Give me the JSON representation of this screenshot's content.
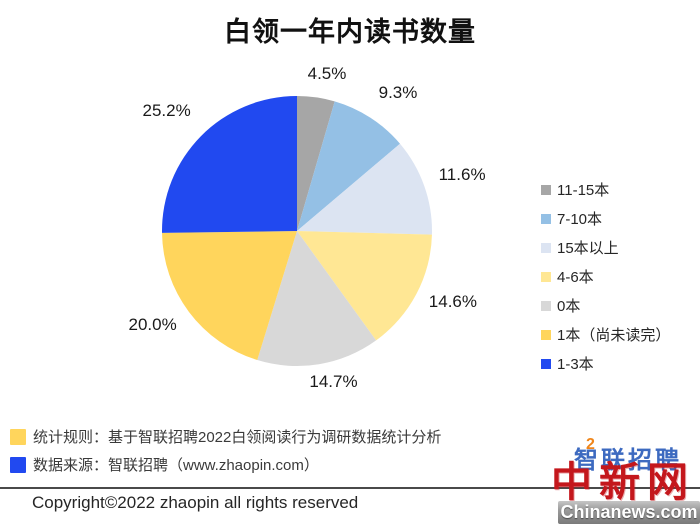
{
  "title": "白领一年内读书数量",
  "chart_data": {
    "type": "pie",
    "title": "白领一年内读书数量",
    "start_angle_deg": 0,
    "direction": "clockwise",
    "legend_position": "right",
    "series": [
      {
        "label": "11-15本",
        "value": 4.5,
        "color": "#A6A6A6"
      },
      {
        "label": "7-10本",
        "value": 9.3,
        "color": "#94C0E5"
      },
      {
        "label": "15本以上",
        "value": 11.6,
        "color": "#DCE4F2"
      },
      {
        "label": "4-6本",
        "value": 14.6,
        "color": "#FFE794"
      },
      {
        "label": "0本",
        "value": 14.7,
        "color": "#D8D8D8"
      },
      {
        "label": "1本（尚未读完）",
        "value": 20.0,
        "color": "#FFD55C"
      },
      {
        "label": "1-3本",
        "value": 25.2,
        "color": "#2149F0"
      }
    ],
    "value_labels": [
      "4.5%",
      "9.3%",
      "11.6%",
      "14.6%",
      "14.7%",
      "20.0%",
      "25.2%"
    ]
  },
  "notes": [
    {
      "color": "#FFD55C",
      "text": "统计规则：基于智联招聘2022白领阅读行为调研数据统计分析"
    },
    {
      "color": "#2149F0",
      "text": "数据来源：智联招聘（www.zhaopin.com）"
    }
  ],
  "footer": {
    "copyright": "Copyright©2022 zhaopin all rights reserved"
  },
  "watermarks": {
    "zhaopin_logo": "智联招聘",
    "zhaopin_logo_accent": "2",
    "chinanews_seal": "中新网",
    "chinanews_domain": "Chinanews.com"
  }
}
